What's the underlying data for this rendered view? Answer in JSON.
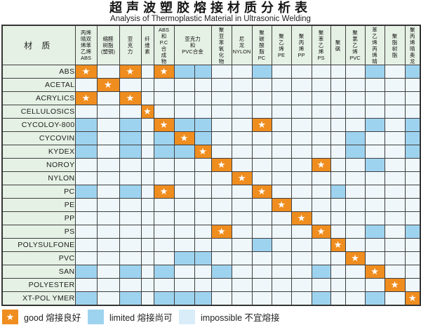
{
  "page": {
    "title": "超声波塑胶熔接材质分析表",
    "subtitle": "Analysis of Thermoplastic Material in Ultrasonic Welding"
  },
  "table": {
    "corner_label": "材 质",
    "col_headers": [
      {
        "label": "丙烯\n晴双\n烯苯\n乙烯\nABS",
        "colspan": 1
      },
      {
        "label": "缩醛\n树脂\n(塑钢)",
        "colspan": 1
      },
      {
        "label": "亚\n克\n力",
        "colspan": 1
      },
      {
        "label": "纤\n维\n素",
        "colspan": 1
      },
      {
        "label": "ABS\n和\nP.C\n合\n成\n物",
        "colspan": 1
      },
      {
        "label": "亚克力\n和\nPVC合金",
        "colspan": 2
      },
      {
        "label": "聚\n亚\n苯\n氧\n化\n物",
        "colspan": 1
      },
      {
        "label": "尼\n龙\nNYLON",
        "colspan": 1
      },
      {
        "label": "聚\n碳\n酸\n脂\nPC",
        "colspan": 1
      },
      {
        "label": "聚\n乙\n烯\nPE",
        "colspan": 1
      },
      {
        "label": "聚\n丙\n烯\nPP",
        "colspan": 1
      },
      {
        "label": "聚\n苯\n乙\n烯\nPS",
        "colspan": 1
      },
      {
        "label": "聚\n砜",
        "colspan": 1
      },
      {
        "label": "聚\n氯\n乙\n烯\nPVC",
        "colspan": 1
      },
      {
        "label": "苯\n乙\n烯\n丙\n烯\n晴",
        "colspan": 1
      },
      {
        "label": "聚\n脂\n树\n脂",
        "colspan": 1
      },
      {
        "label": "聚\n丙\n烯\n晴\n奥\n龙",
        "colspan": 1
      }
    ]
  },
  "legend": {
    "items": [
      {
        "id": "good",
        "text": "good 熔接良好"
      },
      {
        "id": "limited",
        "text": "limited 熔接尚可"
      },
      {
        "id": "impossible",
        "text": "impossible 不宜熔接"
      }
    ]
  },
  "colors": {
    "good": "#ef8d1f",
    "limited": "#9ed3f0",
    "impossible": "#d9edf9",
    "header_bg": "#e6f1e5",
    "empty_cell_bg": "#eff7fb",
    "border": "#3f3f3f",
    "star": "#ffffff"
  },
  "chart_data": {
    "type": "heatmap",
    "title": "超声波塑胶熔接材质分析表",
    "subtitle": "Analysis of Thermoplastic Material in Ultrasonic Welding",
    "legend_position": "bottom",
    "value_codes": {
      "G": "good 熔接良好",
      "L": "limited 熔接尚可",
      "": "impossible 不宜熔接"
    },
    "rows": [
      "ABS",
      "ACETAL",
      "ACRYLICS",
      "CELLULOSICS",
      "CYCOLOY-800",
      "CYCOVIN",
      "KYDEX",
      "NOROY",
      "NYLON",
      "PC",
      "PE",
      "PP",
      "PS",
      "POLYSULFONE",
      "PVC",
      "SAN",
      "POLYESTER",
      "XT-POL YMER"
    ],
    "cols": [
      "丙烯晴双烯苯乙烯ABS",
      "缩醛树脂(塑钢)",
      "亚克力",
      "纤维素",
      "ABS和P.C合成物",
      "亚克力和PVC合金",
      "亚克力和PVC合金",
      "聚亚苯氧化物",
      "尼龙NYLON",
      "聚碳酸脂PC",
      "聚乙烯PE",
      "聚丙烯PP",
      "聚苯乙烯PS",
      "聚砜",
      "聚氯乙烯PVC",
      "苯乙烯丙烯晴",
      "聚脂树脂",
      "聚丙烯晴奥龙"
    ],
    "matrix": [
      [
        "G",
        "",
        "G",
        "",
        "G",
        "L",
        "L",
        "",
        "",
        "L",
        "",
        "",
        "",
        "",
        "",
        "L",
        "",
        "L"
      ],
      [
        "",
        "G",
        "",
        "",
        "",
        "",
        "",
        "",
        "",
        "",
        "",
        "",
        "",
        "",
        "",
        "",
        "",
        ""
      ],
      [
        "G",
        "",
        "G",
        "",
        "",
        "",
        "",
        "",
        "",
        "",
        "",
        "",
        "",
        "",
        "",
        "",
        "",
        ""
      ],
      [
        "",
        "",
        "",
        "G",
        "",
        "",
        "",
        "",
        "",
        "",
        "",
        "",
        "",
        "",
        "",
        "",
        "",
        ""
      ],
      [
        "L",
        "",
        "L",
        "",
        "G",
        "L",
        "L",
        "",
        "",
        "G",
        "",
        "",
        "",
        "",
        "",
        "L",
        "",
        "L"
      ],
      [
        "L",
        "",
        "L",
        "",
        "L",
        "G",
        "L",
        "",
        "",
        "",
        "",
        "",
        "",
        "",
        "L",
        "",
        "",
        "L"
      ],
      [
        "L",
        "",
        "L",
        "",
        "L",
        "L",
        "G",
        "",
        "",
        "",
        "",
        "",
        "",
        "",
        "L",
        "",
        "",
        "L"
      ],
      [
        "",
        "",
        "",
        "",
        "",
        "",
        "",
        "G",
        "",
        "",
        "",
        "",
        "G",
        "",
        "",
        "L",
        "",
        ""
      ],
      [
        "",
        "",
        "",
        "",
        "",
        "",
        "",
        "",
        "G",
        "",
        "",
        "",
        "",
        "",
        "",
        "",
        "",
        ""
      ],
      [
        "L",
        "",
        "L",
        "",
        "G",
        "",
        "",
        "",
        "",
        "G",
        "",
        "",
        "",
        "L",
        "",
        "",
        "",
        ""
      ],
      [
        "",
        "",
        "",
        "",
        "",
        "",
        "",
        "",
        "",
        "",
        "G",
        "",
        "",
        "",
        "",
        "",
        "",
        ""
      ],
      [
        "",
        "",
        "",
        "",
        "",
        "",
        "",
        "",
        "",
        "",
        "",
        "G",
        "",
        "",
        "",
        "",
        "",
        ""
      ],
      [
        "",
        "",
        "",
        "",
        "",
        "",
        "",
        "G",
        "",
        "",
        "",
        "",
        "G",
        "",
        "",
        "L",
        "",
        "L"
      ],
      [
        "",
        "",
        "",
        "",
        "",
        "",
        "",
        "",
        "",
        "L",
        "",
        "",
        "",
        "G",
        "",
        "",
        "",
        ""
      ],
      [
        "",
        "",
        "",
        "",
        "",
        "L",
        "L",
        "",
        "",
        "",
        "",
        "",
        "",
        "",
        "G",
        "",
        "",
        ""
      ],
      [
        "L",
        "",
        "L",
        "",
        "L",
        "",
        "",
        "L",
        "",
        "",
        "",
        "",
        "L",
        "",
        "",
        "G",
        "",
        ""
      ],
      [
        "",
        "",
        "",
        "",
        "",
        "",
        "",
        "",
        "",
        "",
        "",
        "",
        "",
        "",
        "",
        "",
        "G",
        ""
      ],
      [
        "L",
        "",
        "L",
        "",
        "L",
        "L",
        "L",
        "",
        "",
        "",
        "",
        "",
        "L",
        "",
        "",
        "L",
        "",
        "G"
      ]
    ]
  }
}
